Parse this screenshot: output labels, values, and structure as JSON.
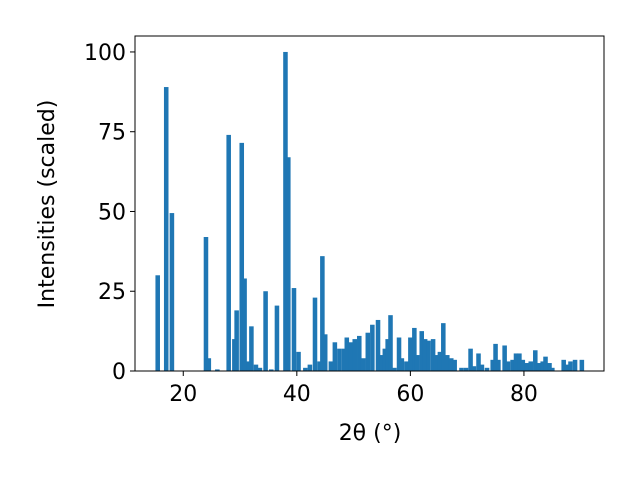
{
  "chart_data": {
    "type": "bar",
    "xlabel": "2θ (°)",
    "ylabel": "Intensities (scaled)",
    "color": "#1f77b4",
    "x": [
      15.5,
      17,
      18,
      24,
      24.5,
      26,
      28,
      29,
      29.4,
      30.3,
      30.8,
      31.5,
      32,
      32.8,
      33.5,
      34.5,
      35.5,
      36.5,
      38,
      38.5,
      39.5,
      40.3,
      41.5,
      42.3,
      43.2,
      44,
      44.5,
      45,
      46,
      46.7,
      47.5,
      48.3,
      48.8,
      49.5,
      50.2,
      51,
      51.7,
      52.5,
      53.3,
      54.3,
      55,
      55.5,
      56,
      56.5,
      57.2,
      58,
      58.5,
      59.3,
      60,
      60.7,
      61.2,
      62,
      62.6,
      63.2,
      64,
      64.5,
      65.2,
      65.8,
      66.5,
      67.2,
      67.8,
      69,
      69.8,
      70.6,
      71.2,
      72,
      72.6,
      73.5,
      74.5,
      75,
      75.5,
      76.6,
      77.2,
      78,
      78.6,
      79.2,
      79.8,
      80.5,
      81.2,
      82,
      82.6,
      83.3,
      83.8,
      84.5,
      85,
      87,
      87.6,
      88.2,
      89,
      90.2
    ],
    "values": [
      30,
      89,
      49.5,
      42,
      4,
      0.5,
      74,
      10,
      19,
      71.5,
      29,
      3,
      14,
      2,
      1,
      25,
      0.5,
      20.5,
      100,
      67,
      26,
      6,
      1,
      2,
      23,
      3,
      36,
      11.5,
      3,
      9,
      7,
      7,
      10.5,
      9,
      10,
      11,
      4,
      12,
      14.5,
      16,
      5,
      7,
      10,
      17.5,
      1,
      10.5,
      4,
      3,
      10.5,
      13.5,
      5,
      12.5,
      10,
      9.5,
      10,
      5,
      6,
      15,
      5,
      4,
      3.5,
      1,
      1,
      7,
      1.5,
      5.5,
      2,
      1,
      3.5,
      8.5,
      3.5,
      8,
      3,
      3.5,
      5.5,
      5.5,
      3.5,
      2.5,
      3,
      6.5,
      2.5,
      3,
      4.5,
      2.5,
      1,
      3.5,
      2,
      3,
      3.5,
      3.5
    ],
    "xlim": [
      11.5,
      94.1
    ],
    "ylim": [
      0,
      105
    ],
    "xticks": [
      20,
      40,
      60,
      80
    ],
    "yticks": [
      0,
      25,
      50,
      75,
      100
    ]
  }
}
